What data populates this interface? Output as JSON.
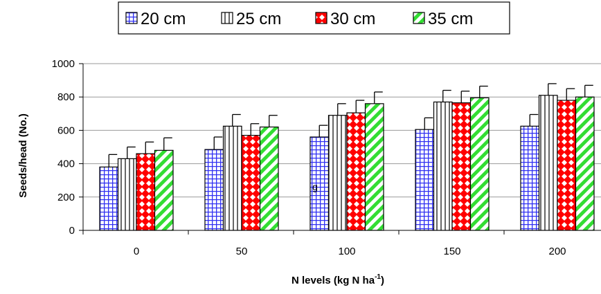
{
  "chart_data": {
    "type": "bar",
    "xlabel": "N levels (kg N ha",
    "xlabel_sup": "-1",
    "xlabel_close": ")",
    "ylabel": "Seeds/head (No.)",
    "categories": [
      "0",
      "50",
      "100",
      "150",
      "200"
    ],
    "ylim": [
      0,
      1000
    ],
    "yticks": [
      0,
      200,
      400,
      600,
      800,
      1000
    ],
    "grid": true,
    "legend_position": "top",
    "series": [
      {
        "name": "20 cm",
        "pattern": "grid",
        "color": "#3333ff",
        "values": [
          380,
          485,
          560,
          605,
          625
        ],
        "errors": [
          75,
          75,
          70,
          70,
          70
        ]
      },
      {
        "name": "25 cm",
        "pattern": "vertical-stripes",
        "color": "#000000",
        "values": [
          430,
          625,
          690,
          770,
          810
        ],
        "errors": [
          70,
          70,
          70,
          70,
          70
        ]
      },
      {
        "name": "30 cm",
        "pattern": "diamonds",
        "color": "#ff0000",
        "values": [
          460,
          570,
          705,
          765,
          780
        ],
        "errors": [
          70,
          70,
          75,
          70,
          70
        ]
      },
      {
        "name": "35 cm",
        "pattern": "diagonal-stripes",
        "color": "#33dd33",
        "values": [
          480,
          620,
          760,
          795,
          800
        ],
        "errors": [
          75,
          70,
          70,
          70,
          70
        ]
      }
    ],
    "annotations": [
      {
        "text": "g"
      }
    ]
  }
}
